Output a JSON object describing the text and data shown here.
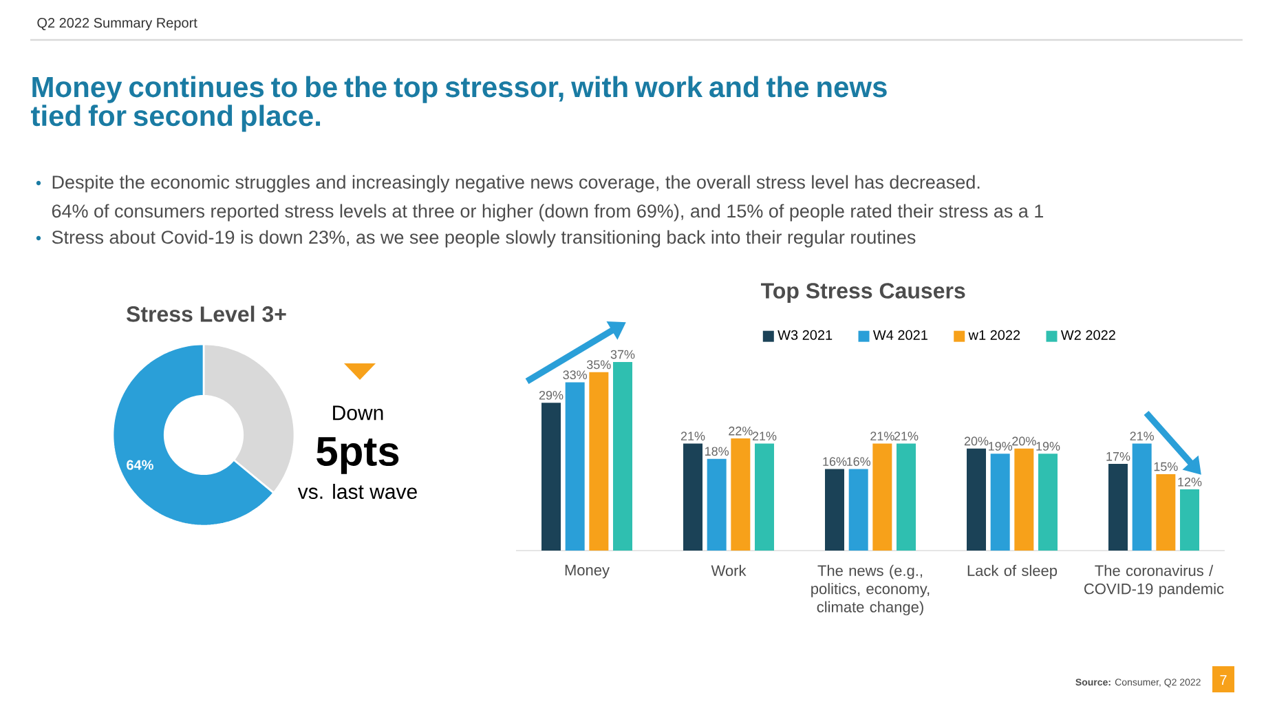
{
  "chart_data": [
    {
      "type": "other",
      "title": "Money continues to be the top stressor, with work and the news tied for second place.",
      "annotations": [
        "Q2 2022 Summary Report",
        "Despite the economic struggles and increasingly negative news coverage, the overall stress level has decreased.",
        "64% of consumers reported stress levels at three or higher (down from 69%), and 15% of people rated their stress as a 1",
        "Stress about Covid-19 is down 23%, as we see people slowly transitioning back into their regular routines",
        "**Source:** Consumer, Q2 2022",
        "7"
      ]
    },
    {
      "type": "donut",
      "title": "Stress Level 3+",
      "categories": [
        null,
        null
      ],
      "values": [
        36,
        64
      ],
      "colors": [
        "#d9d9d9",
        "#2a9fd8"
      ],
      "value_labels": [
        null,
        "64%"
      ],
      "annotations": [
        "Down",
        "5pts",
        "vs. last wave"
      ]
    },
    {
      "type": "bar",
      "title": "Top Stress Causers",
      "categories": [
        "Money",
        "Work",
        "The news (e.g., politics, economy, climate change)",
        "Lack of sleep",
        "The coronavirus / COVID-19 pandemic"
      ],
      "legend": "top",
      "series": [
        {
          "name": "W3 2021",
          "color": "#1b4257",
          "values": [
            29,
            21,
            16,
            20,
            17
          ],
          "value_labels": [
            "29%",
            "21%",
            "16%",
            "20%",
            "17%"
          ]
        },
        {
          "name": "W4 2021",
          "color": "#2a9fd8",
          "values": [
            33,
            18,
            16,
            19,
            21
          ],
          "value_labels": [
            "33%",
            "18%",
            "16%",
            "19%",
            "21%"
          ]
        },
        {
          "name": "w1 2022",
          "color": "#f7a11a",
          "values": [
            35,
            22,
            21,
            20,
            15
          ],
          "value_labels": [
            "35%",
            "22%",
            "21%",
            "20%",
            "15%"
          ]
        },
        {
          "name": "W2 2022",
          "color": "#2fbfb0",
          "values": [
            37,
            21,
            21,
            19,
            12
          ],
          "value_labels": [
            "37%",
            "21%",
            "21%",
            "19%",
            "12%"
          ]
        }
      ]
    }
  ]
}
